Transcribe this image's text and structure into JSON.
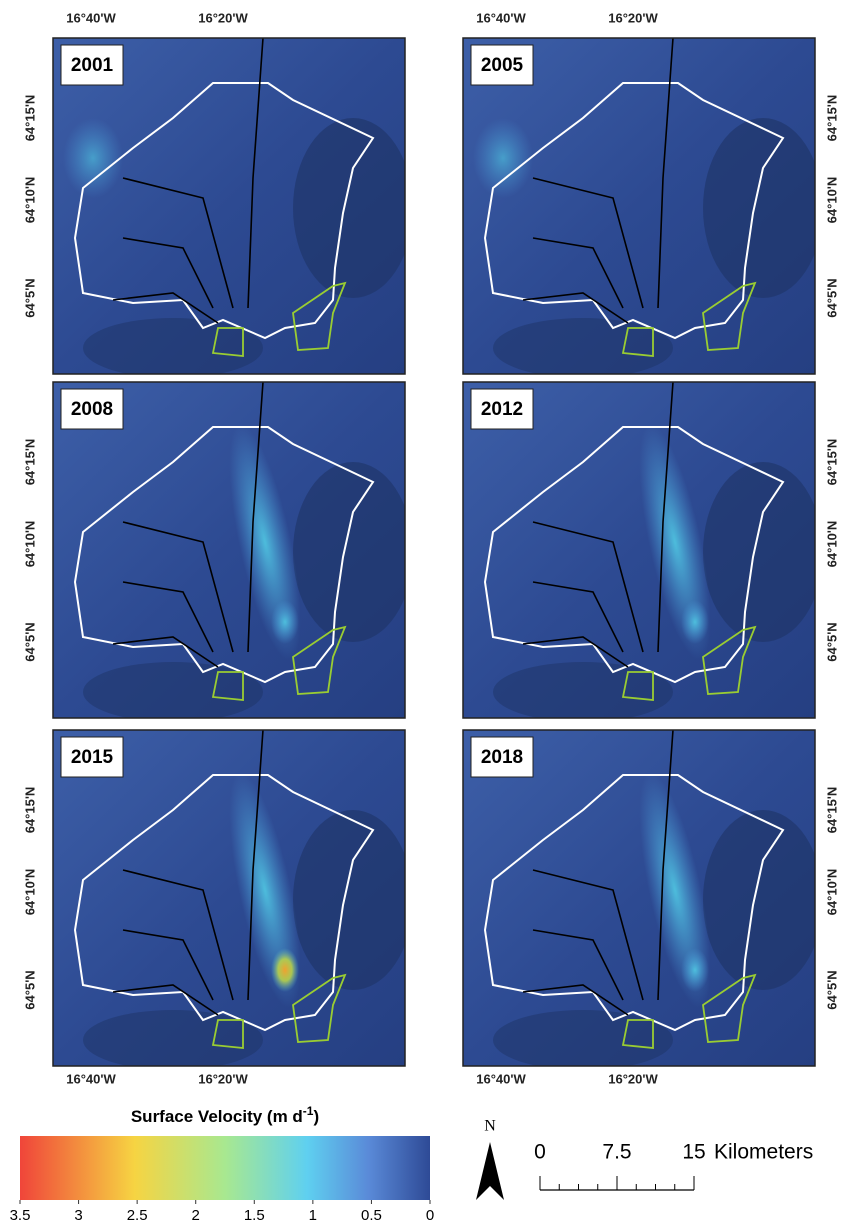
{
  "panels": [
    {
      "year": "2001"
    },
    {
      "year": "2005"
    },
    {
      "year": "2008"
    },
    {
      "year": "2012"
    },
    {
      "year": "2015"
    },
    {
      "year": "2018"
    }
  ],
  "map_labels": {
    "lon": [
      "16°40'W",
      "16°20'W"
    ],
    "lat": [
      "64°15'N",
      "64°10'N",
      "64°5'N"
    ]
  },
  "colorbar": {
    "title": "Surface Velocity (m d",
    "title_sup": "-1",
    "title_end": ")",
    "lim": [
      3.5,
      0
    ],
    "ticks": [
      3.5,
      3,
      2.5,
      2,
      1.5,
      1,
      0.5,
      0
    ]
  },
  "scale_bar": {
    "north": "N",
    "ticks": [
      0,
      7.5,
      15
    ],
    "unit": "Kilometers"
  }
}
